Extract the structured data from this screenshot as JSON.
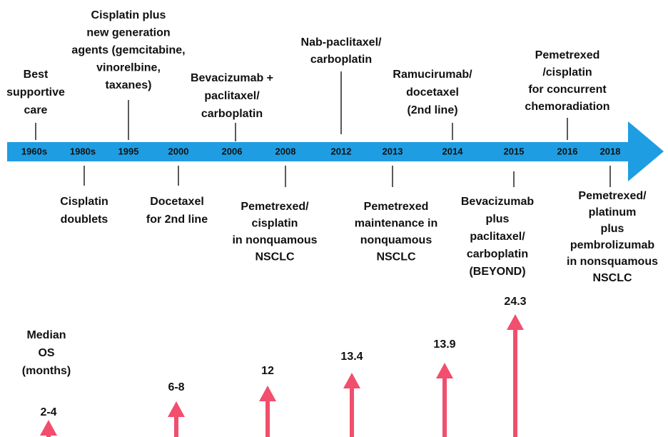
{
  "timeline": {
    "years": [
      "1960s",
      "1980s",
      "1995",
      "2000",
      "2006",
      "2008",
      "2012",
      "2013",
      "2014",
      "2015",
      "2016",
      "2018"
    ]
  },
  "above": [
    {
      "lines": [
        "Best",
        "supportive",
        "care"
      ]
    },
    {
      "lines": [
        "Cisplatin plus",
        "new generation",
        "agents (gemcitabine,",
        "vinorelbine,",
        "taxanes)"
      ]
    },
    {
      "lines": [
        "Bevacizumab +",
        "paclitaxel/",
        "carboplatin"
      ]
    },
    {
      "lines": [
        "Nab-paclitaxel/",
        "carboplatin"
      ]
    },
    {
      "lines": [
        "Ramucirumab/",
        "docetaxel",
        "(2nd line)"
      ]
    },
    {
      "lines": [
        "Pemetrexed",
        "/cisplatin",
        "for concurrent",
        "chemoradiation"
      ]
    }
  ],
  "below": [
    {
      "lines": [
        "Cisplatin",
        "doublets"
      ]
    },
    {
      "lines": [
        "Docetaxel",
        "for 2nd line"
      ]
    },
    {
      "lines": [
        "Pemetrexed/",
        "cisplatin",
        "in nonquamous",
        "NSCLC"
      ]
    },
    {
      "lines": [
        "Pemetrexed",
        "maintenance in",
        "nonquamous",
        "NSCLC"
      ]
    },
    {
      "lines": [
        "Bevacizumab",
        "plus",
        "paclitaxel/",
        "carboplatin",
        "(BEYOND)"
      ]
    },
    {
      "lines": [
        "Pemetrexed/",
        "platinum",
        "plus",
        "pembrolizumab",
        "in nonsquamous",
        "NSCLC"
      ]
    }
  ],
  "os": {
    "title": [
      "Median",
      "OS",
      "(months)"
    ],
    "labels": [
      "2-4",
      "6-8",
      "12",
      "13.4",
      "13.9",
      "24.3"
    ]
  }
}
